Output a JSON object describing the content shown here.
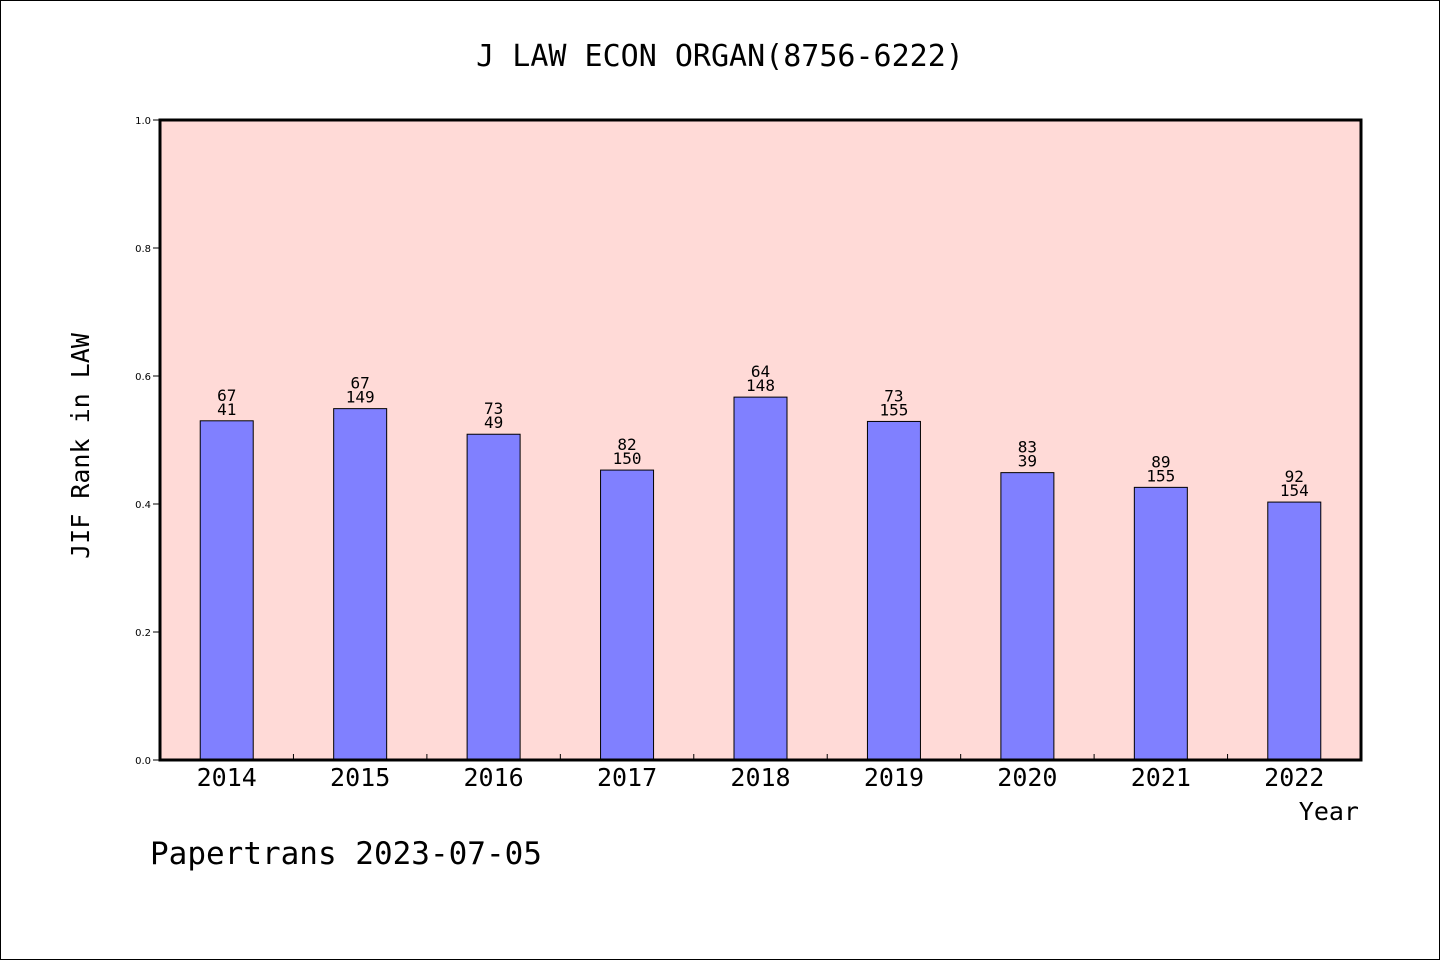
{
  "chart_data": {
    "type": "bar",
    "title": "J LAW ECON ORGAN(8756-6222)",
    "xlabel": "Year",
    "ylabel": "JIF Rank in LAW",
    "ylim": [
      0,
      1.0
    ],
    "yticks": [
      "0.0",
      "0.2",
      "0.4",
      "0.6",
      "0.8",
      "1.0"
    ],
    "categories": [
      "2014",
      "2015",
      "2016",
      "2017",
      "2018",
      "2019",
      "2020",
      "2021",
      "2022"
    ],
    "values": [
      0.53,
      0.549,
      0.509,
      0.453,
      0.567,
      0.529,
      0.449,
      0.426,
      0.403
    ],
    "bar_labels_top": [
      "67",
      "67",
      "73",
      "82",
      "64",
      "73",
      "83",
      "89",
      "92"
    ],
    "bar_labels_bottom": [
      "41",
      "149",
      "49",
      "150",
      "148",
      "155",
      "39",
      "155",
      "154"
    ],
    "grid": false,
    "colors": {
      "plot_background": "#ffdad7",
      "bar_fill": "#8080ff",
      "bar_stroke": "#000000"
    }
  },
  "footer": {
    "text": "Papertrans 2023-07-05"
  }
}
